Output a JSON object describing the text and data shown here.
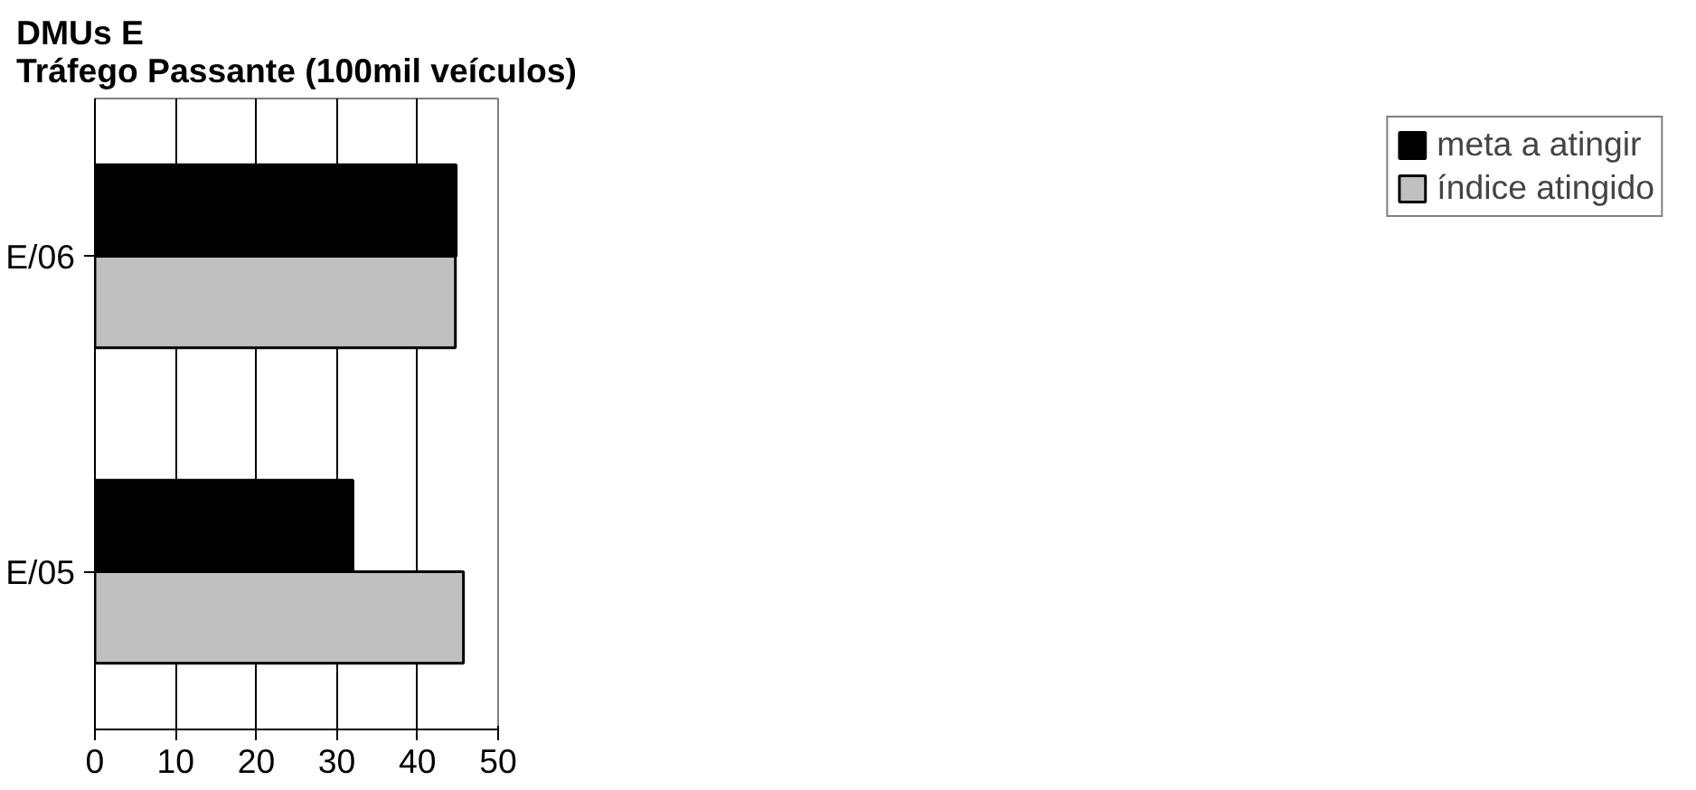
{
  "chart_data": {
    "type": "bar",
    "orientation": "horizontal",
    "title": "DMUs E\nTráfego Passante (100mil veículos)",
    "categories": [
      "E/06",
      "E/05"
    ],
    "series": [
      {
        "name": "meta a atingir",
        "color": "#000000",
        "values": [
          44.8,
          32.0
        ]
      },
      {
        "name": "índice atingido",
        "color": "#c0c0c0",
        "values": [
          44.7,
          45.7
        ]
      }
    ],
    "xlim": [
      0,
      50
    ],
    "xticks": [
      0,
      10,
      20,
      30,
      40,
      50
    ],
    "grid": "x",
    "legend": "top right"
  }
}
